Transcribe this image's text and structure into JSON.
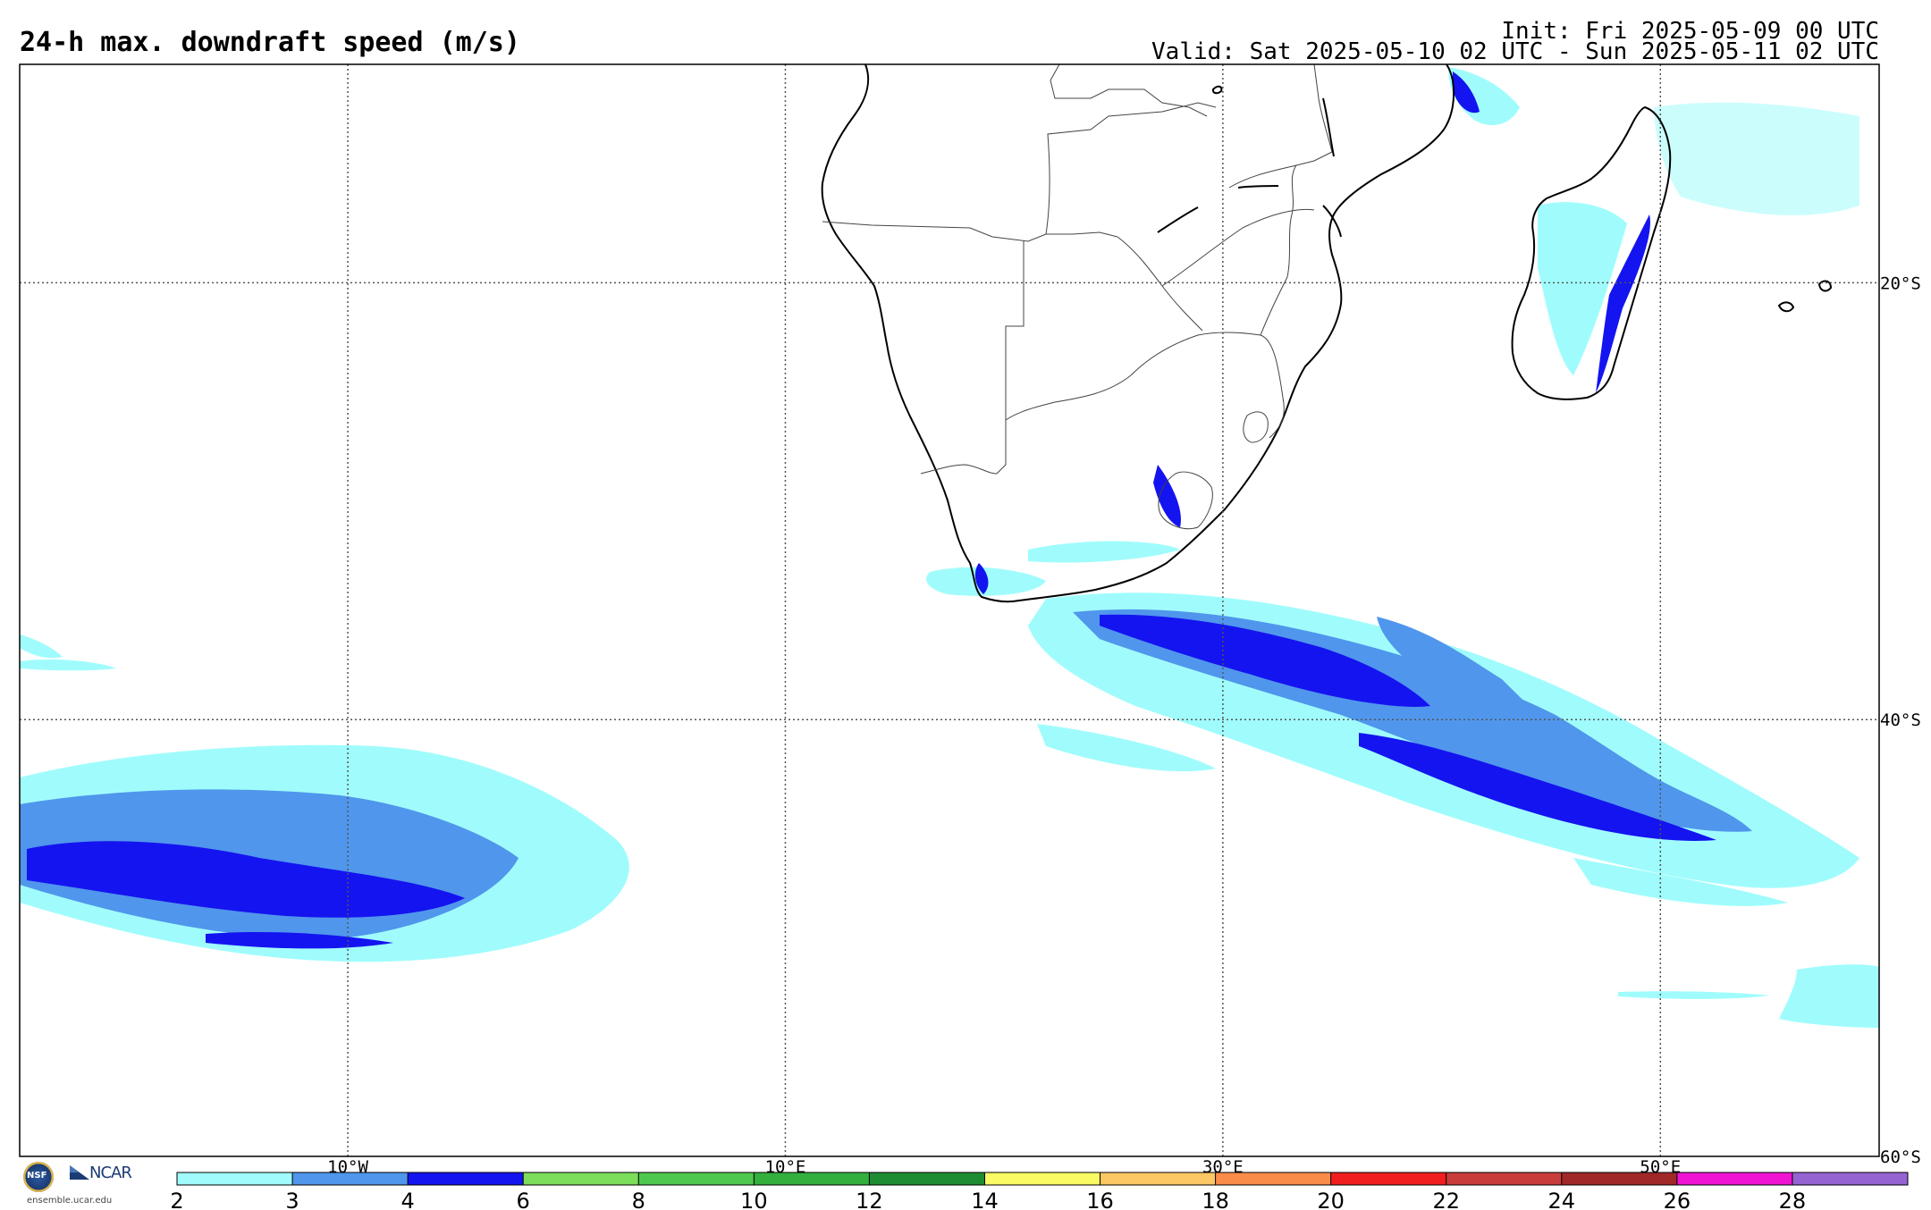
{
  "header": {
    "title": "24-h max. downdraft speed (m/s)",
    "init": "Init: Fri 2025-05-09 00 UTC",
    "valid": "Valid: Sat 2025-05-10 02 UTC - Sun 2025-05-11 02 UTC"
  },
  "map": {
    "lon_range": [
      -25,
      60
    ],
    "lat_range": [
      -60,
      -10
    ],
    "meridians": [
      {
        "lon": -10,
        "label": "10°W"
      },
      {
        "lon": 10,
        "label": "10°E"
      },
      {
        "lon": 30,
        "label": "30°E"
      },
      {
        "lon": 50,
        "label": "50°E"
      }
    ],
    "parallels": [
      {
        "lat": -20,
        "label": "20°S"
      },
      {
        "lat": -40,
        "label": "40°S"
      },
      {
        "lat": -60,
        "label": "60°S"
      }
    ],
    "grid_style": "dotted"
  },
  "colorbar": {
    "ticks": [
      "2",
      "3",
      "4",
      "6",
      "8",
      "10",
      "12",
      "14",
      "16",
      "18",
      "20",
      "22",
      "24",
      "26",
      "28"
    ],
    "colors": [
      "#a0fcfc",
      "#5096ec",
      "#1414f0",
      "#7cde5a",
      "#50c850",
      "#32af3c",
      "#1e8c32",
      "#fafa64",
      "#fcc864",
      "#fa8c4a",
      "#f01e1e",
      "#c83c3c",
      "#a02828",
      "#f014d2",
      "#9664d2"
    ]
  },
  "logos": {
    "nsf": "NSF",
    "ncar": "NCAR",
    "url": "ensemble.ucar.edu"
  }
}
